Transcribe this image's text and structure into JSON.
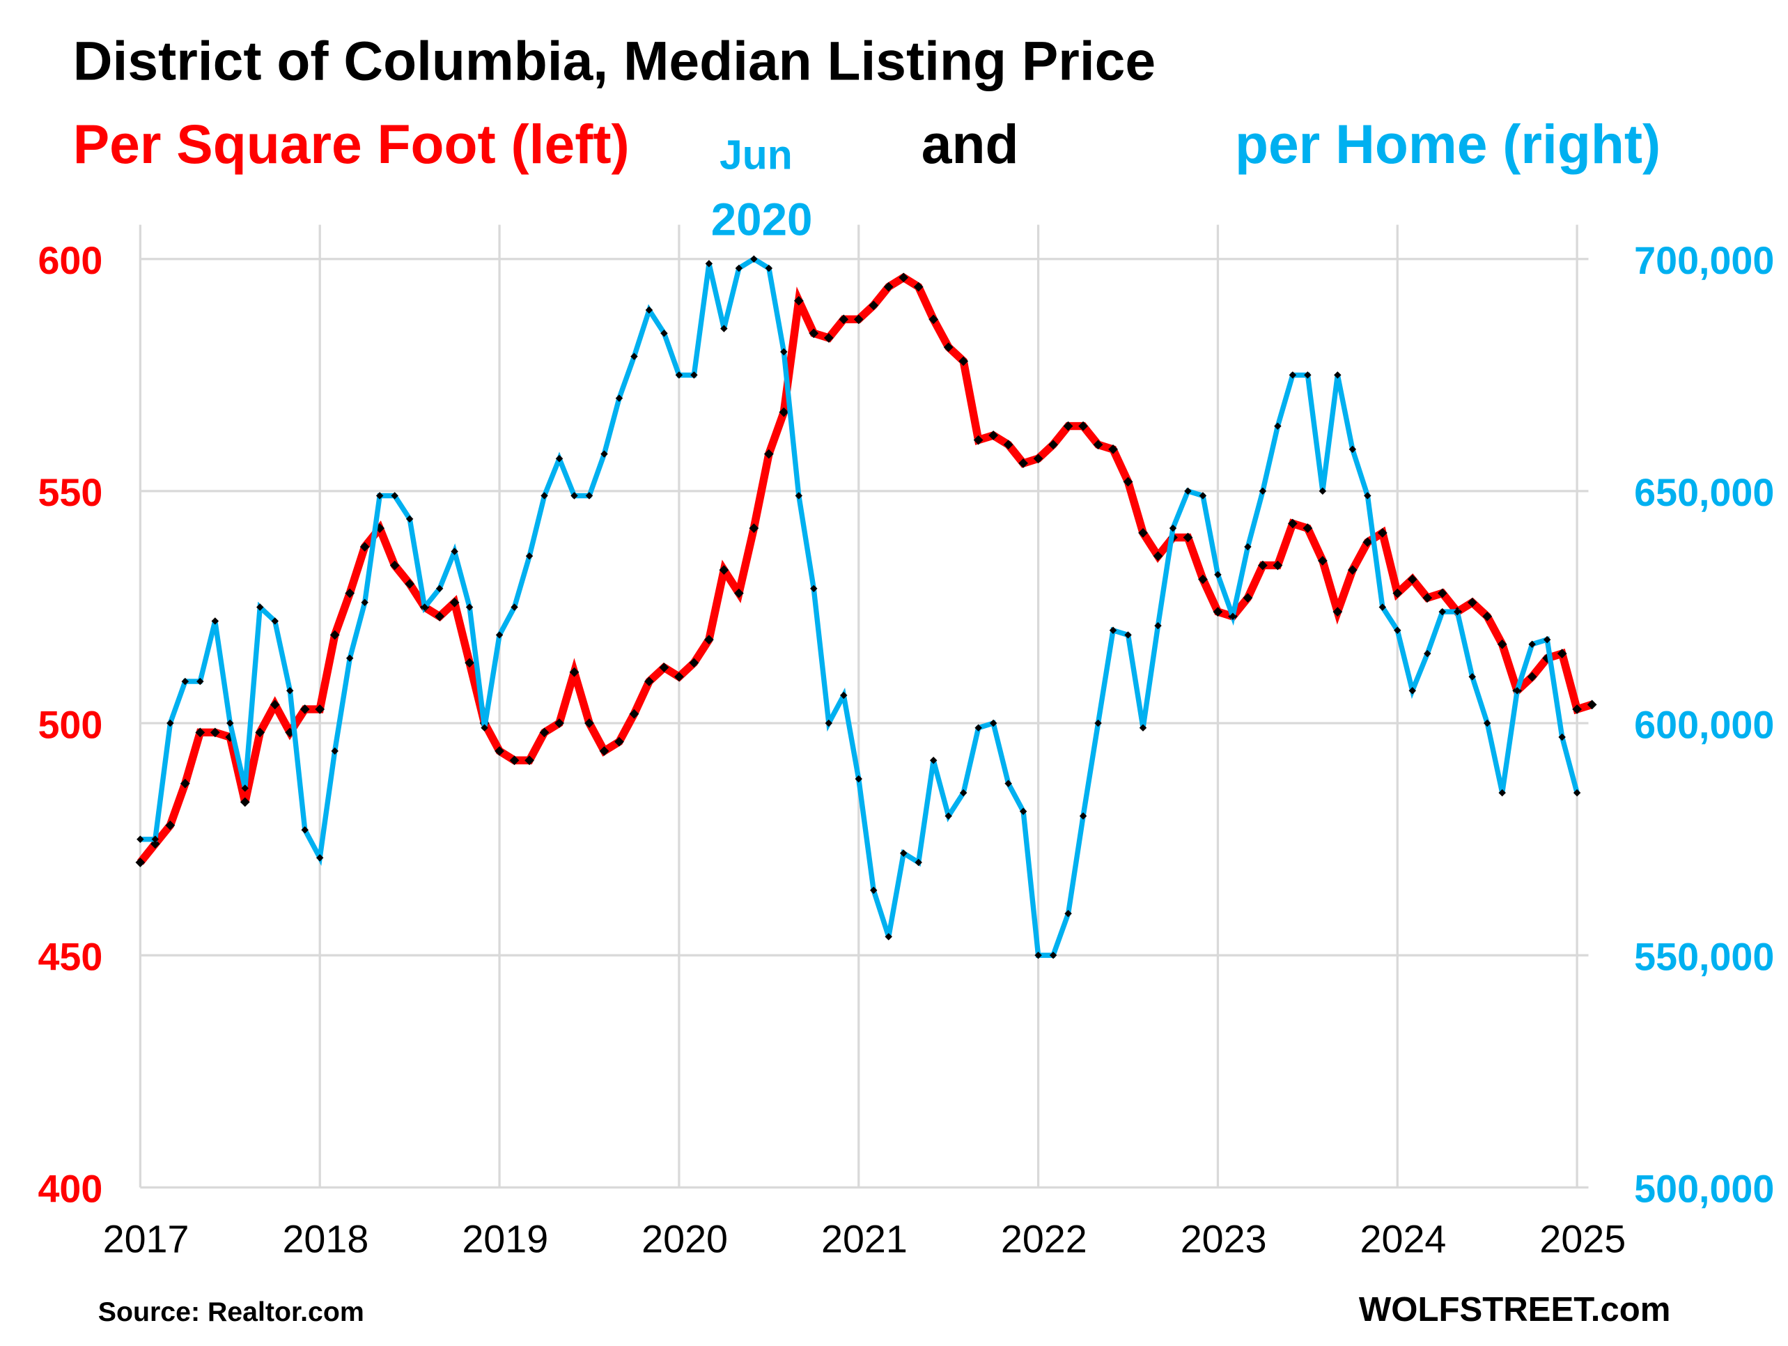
{
  "colors": {
    "left_series": "#ff0000",
    "right_series": "#00b0f0",
    "marker": "#000000",
    "title": "#000000",
    "grid": "#d9d9d9"
  },
  "chart_data": {
    "type": "line",
    "title": "District of Columbia, Median Listing Price",
    "subtitle": {
      "left_part": "Per Square Foot (left)",
      "middle_part": "and",
      "right_part": "per Home (right)"
    },
    "annotation": {
      "line1": "Jun",
      "line2": "2020",
      "x_index": 41
    },
    "x_start": "2017-01",
    "x_frequency": "monthly",
    "x_tick_labels": [
      "2017",
      "2018",
      "2019",
      "2020",
      "2021",
      "2022",
      "2023",
      "2024",
      "2025"
    ],
    "y_left": {
      "label": "Per Square Foot",
      "range": [
        400,
        600
      ],
      "tick_labels": [
        "400",
        "450",
        "500",
        "550",
        "600"
      ],
      "ticks": [
        400,
        450,
        500,
        550,
        600
      ]
    },
    "y_right": {
      "label": "per Home",
      "range": [
        500000,
        700000
      ],
      "tick_labels": [
        "500,000",
        "550,000",
        "600,000",
        "650,000",
        "700,000"
      ],
      "ticks": [
        500000,
        550000,
        600000,
        650000,
        700000
      ]
    },
    "grid": true,
    "series": [
      {
        "name": "Per Square Foot (left)",
        "axis": "left",
        "values": [
          470,
          474,
          478,
          487,
          498,
          498,
          497,
          483,
          498,
          504,
          498,
          503,
          503,
          519,
          528,
          538,
          542,
          534,
          530,
          525,
          523,
          526,
          513,
          500,
          494,
          492,
          492,
          498,
          500,
          511,
          500,
          494,
          496,
          502,
          509,
          512,
          510,
          513,
          518,
          533,
          528,
          542,
          558,
          567,
          591,
          584,
          583,
          587,
          587,
          590,
          594,
          596,
          594,
          587,
          581,
          578,
          561,
          562,
          560,
          556,
          557,
          560,
          564,
          564,
          560,
          559,
          552,
          541,
          536,
          540,
          540,
          531,
          524,
          523,
          527,
          534,
          534,
          543,
          542,
          535,
          524,
          533,
          539,
          541,
          528,
          531,
          527,
          528,
          524,
          526,
          523,
          517,
          507,
          510,
          514,
          515,
          503,
          504
        ]
      },
      {
        "name": "per Home (right)",
        "axis": "right",
        "values": [
          575000,
          575000,
          600000,
          609000,
          609000,
          622000,
          600000,
          586000,
          625000,
          622000,
          607000,
          577000,
          571000,
          594000,
          614000,
          626000,
          649000,
          649000,
          644000,
          625000,
          629000,
          637000,
          625000,
          599000,
          619000,
          625000,
          636000,
          649000,
          657000,
          649000,
          649000,
          658000,
          670000,
          679000,
          689000,
          684000,
          675000,
          675000,
          699000,
          685000,
          698000,
          700000,
          698000,
          680000,
          649000,
          629000,
          600000,
          606000,
          588000,
          564000,
          554000,
          572000,
          570000,
          592000,
          580000,
          585000,
          599000,
          600000,
          587000,
          581000,
          550000,
          550000,
          559000,
          580000,
          600000,
          620000,
          619000,
          599000,
          621000,
          642000,
          650000,
          649000,
          632000,
          623000,
          638000,
          650000,
          664000,
          675000,
          675000,
          650000,
          675000,
          659000,
          649000,
          625000,
          620000,
          607000,
          615000,
          624000,
          624000,
          610000,
          600000,
          585000,
          607000,
          617000,
          618000,
          597000,
          585000
        ]
      }
    ]
  },
  "footer": {
    "source": "Source: Realtor.com",
    "brand": "WOLFSTREET.com"
  }
}
